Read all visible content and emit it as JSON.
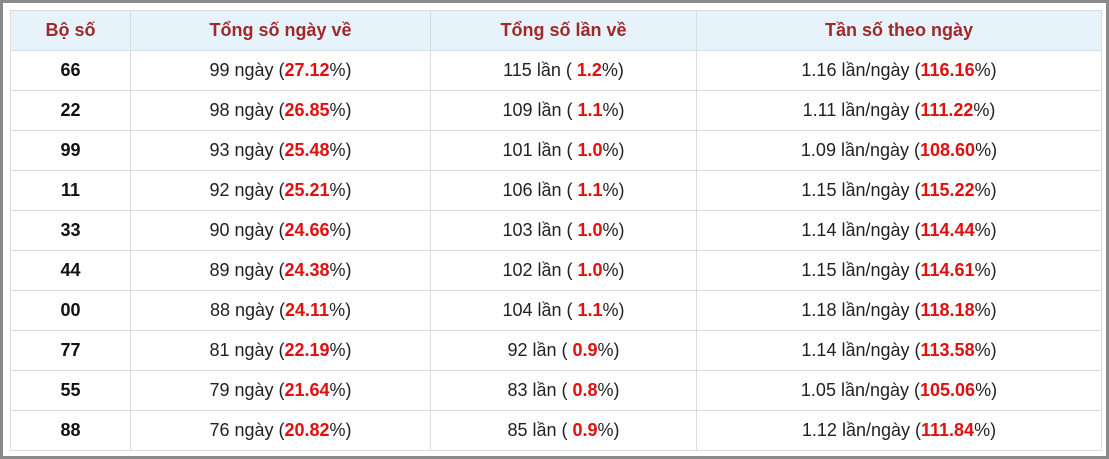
{
  "table": {
    "header": [
      "Bộ số",
      "Tổng số ngày về",
      "Tổng số lần về",
      "Tần số theo ngày"
    ],
    "rows": [
      [
        [
          "66"
        ],
        [
          "99 ngày (",
          "27.12",
          "%)"
        ],
        [
          "115 lần ( ",
          "1.2",
          "%)"
        ],
        [
          "1.16 lần/ngày (",
          "116.16",
          "%)"
        ]
      ],
      [
        [
          "22"
        ],
        [
          "98 ngày (",
          "26.85",
          "%)"
        ],
        [
          "109 lần ( ",
          "1.1",
          "%)"
        ],
        [
          "1.11 lần/ngày (",
          "111.22",
          "%)"
        ]
      ],
      [
        [
          "99"
        ],
        [
          "93 ngày (",
          "25.48",
          "%)"
        ],
        [
          "101 lần ( ",
          "1.0",
          "%)"
        ],
        [
          "1.09 lần/ngày (",
          "108.60",
          "%)"
        ]
      ],
      [
        [
          "11"
        ],
        [
          "92 ngày (",
          "25.21",
          "%)"
        ],
        [
          "106 lần ( ",
          "1.1",
          "%)"
        ],
        [
          "1.15 lần/ngày (",
          "115.22",
          "%)"
        ]
      ],
      [
        [
          "33"
        ],
        [
          "90 ngày (",
          "24.66",
          "%)"
        ],
        [
          "103 lần ( ",
          "1.0",
          "%)"
        ],
        [
          "1.14 lần/ngày (",
          "114.44",
          "%)"
        ]
      ],
      [
        [
          "44"
        ],
        [
          "89 ngày (",
          "24.38",
          "%)"
        ],
        [
          "102 lần ( ",
          "1.0",
          "%)"
        ],
        [
          "1.15 lần/ngày (",
          "114.61",
          "%)"
        ]
      ],
      [
        [
          "00"
        ],
        [
          "88 ngày (",
          "24.11",
          "%)"
        ],
        [
          "104 lần ( ",
          "1.1",
          "%)"
        ],
        [
          "1.18 lần/ngày (",
          "118.18",
          "%)"
        ]
      ],
      [
        [
          "77"
        ],
        [
          "81 ngày (",
          "22.19",
          "%)"
        ],
        [
          "92 lần ( ",
          "0.9",
          "%)"
        ],
        [
          "1.14 lần/ngày (",
          "113.58",
          "%)"
        ]
      ],
      [
        [
          "55"
        ],
        [
          "79 ngày (",
          "21.64",
          "%)"
        ],
        [
          "83 lần ( ",
          "0.8",
          "%)"
        ],
        [
          "1.05 lần/ngày (",
          "105.06",
          "%)"
        ]
      ],
      [
        [
          "88"
        ],
        [
          "76 ngày (",
          "20.82",
          "%)"
        ],
        [
          "85 lần ( ",
          "0.9",
          "%)"
        ],
        [
          "1.12 lần/ngày (",
          "111.84",
          "%)"
        ]
      ]
    ]
  }
}
